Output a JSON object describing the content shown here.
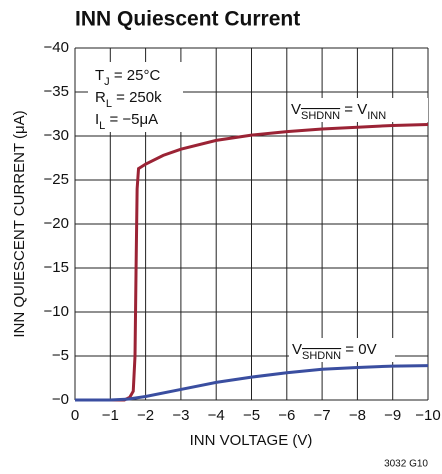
{
  "chart_data": {
    "type": "line",
    "title": "INN Quiescent Current",
    "xlabel": "INN VOLTAGE (V)",
    "ylabel": "INN QUIESCENT CURRENT (μA)",
    "footnote": "3032 G10",
    "xlim": [
      0,
      -10
    ],
    "ylim": [
      0,
      -40
    ],
    "xticks": [
      0,
      {
        "value": -1,
        "label": "−1"
      },
      {
        "value": -2,
        "label": "−2"
      },
      {
        "value": -3,
        "label": "−3"
      },
      {
        "value": -4,
        "label": "−4"
      },
      {
        "value": -5,
        "label": "−5"
      },
      {
        "value": -6,
        "label": "−6"
      },
      {
        "value": -7,
        "label": "−7"
      },
      {
        "value": -8,
        "label": "−8"
      },
      {
        "value": -9,
        "label": "−9"
      },
      {
        "value": -10,
        "label": "−10"
      }
    ],
    "yticks": [
      {
        "value": 0,
        "label": "−0"
      },
      {
        "value": -5,
        "label": "−5"
      },
      {
        "value": -10,
        "label": "−10"
      },
      {
        "value": -15,
        "label": "−15"
      },
      {
        "value": -20,
        "label": "−20"
      },
      {
        "value": -25,
        "label": "−25"
      },
      {
        "value": -30,
        "label": "−30"
      },
      {
        "value": -35,
        "label": "−35"
      },
      {
        "value": -40,
        "label": "−40"
      }
    ],
    "grid": true,
    "conditions": [
      [
        {
          "text": "T"
        },
        {
          "text": "J",
          "sub": true
        },
        {
          "text": " = 25°C"
        }
      ],
      [
        {
          "text": "R"
        },
        {
          "text": "L",
          "sub": true
        },
        {
          "text": " = 250k"
        }
      ],
      [
        {
          "text": "I"
        },
        {
          "text": "L",
          "sub": true
        },
        {
          "text": " = −5μA"
        }
      ]
    ],
    "series": [
      {
        "color": "#9b2335",
        "label_parts": [
          {
            "text": "V"
          },
          {
            "text": "SHDNN",
            "sub": true,
            "overline": true
          },
          {
            "text": " = V"
          },
          {
            "text": "INN",
            "sub": true
          }
        ],
        "x": [
          0,
          -1,
          -1.4,
          -1.55,
          -1.65,
          -1.7,
          -1.73,
          -1.76,
          -1.8,
          -2,
          -2.5,
          -3,
          -4,
          -5,
          -6,
          -7,
          -8,
          -9,
          -10
        ],
        "values": [
          0,
          0,
          0,
          -0.3,
          -1,
          -5,
          -15,
          -24,
          -26.3,
          -26.8,
          -27.8,
          -28.5,
          -29.5,
          -30.1,
          -30.5,
          -30.8,
          -31,
          -31.2,
          -31.3
        ]
      },
      {
        "color": "#3a4ea0",
        "label_parts": [
          {
            "text": "V"
          },
          {
            "text": "SHDNN",
            "sub": true,
            "overline": true
          },
          {
            "text": " = 0V"
          }
        ],
        "x": [
          0,
          -1,
          -1.5,
          -2,
          -3,
          -4,
          -5,
          -6,
          -7,
          -8,
          -9,
          -10
        ],
        "values": [
          0,
          0,
          -0.1,
          -0.4,
          -1.2,
          -2,
          -2.6,
          -3.1,
          -3.5,
          -3.7,
          -3.85,
          -3.9
        ]
      }
    ]
  }
}
